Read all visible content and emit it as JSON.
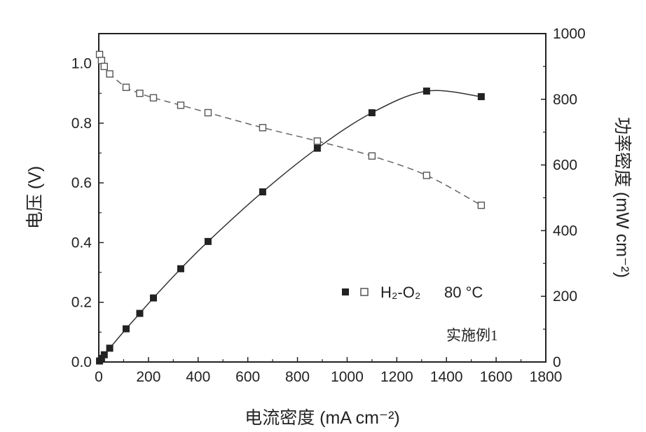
{
  "chart_data": {
    "type": "line",
    "xlabel": "电流密度 (mA cm⁻²)",
    "ylabel_left": "电压 (V)",
    "ylabel_right": "功率密度 (mW cm⁻²)",
    "xlim": [
      0,
      1800
    ],
    "ylim_left": [
      0,
      1.1
    ],
    "ylim_right": [
      0,
      1000
    ],
    "x_ticks": [
      "0",
      "200",
      "400",
      "600",
      "800",
      "1000",
      "1200",
      "1400",
      "1600",
      "1800"
    ],
    "y_left_ticks": [
      "0.0",
      "0.2",
      "0.4",
      "0.6",
      "0.8",
      "1.0"
    ],
    "y_right_ticks": [
      "0",
      "200",
      "400",
      "600",
      "800",
      "1000"
    ],
    "legend": {
      "label": "H₂-O₂",
      "temperature": "80 °C",
      "placement": "lower-right"
    },
    "annotation": "实施例1",
    "series": [
      {
        "axis": "left",
        "marker": "open-square",
        "line": "dashed",
        "x": [
          3,
          11,
          22,
          44,
          110,
          165,
          220,
          330,
          440,
          660,
          880,
          1100,
          1320,
          1540
        ],
        "y": [
          1.03,
          1.01,
          0.99,
          0.965,
          0.92,
          0.9,
          0.885,
          0.86,
          0.835,
          0.785,
          0.74,
          0.69,
          0.625,
          0.525
        ]
      },
      {
        "axis": "right",
        "marker": "filled-square",
        "line": "solid",
        "x": [
          3,
          11,
          22,
          44,
          110,
          165,
          220,
          330,
          440,
          660,
          880,
          1100,
          1320,
          1540
        ],
        "y": [
          3,
          11,
          22,
          42,
          101,
          148,
          195,
          284,
          367,
          518,
          651,
          759,
          825,
          808
        ]
      }
    ]
  }
}
